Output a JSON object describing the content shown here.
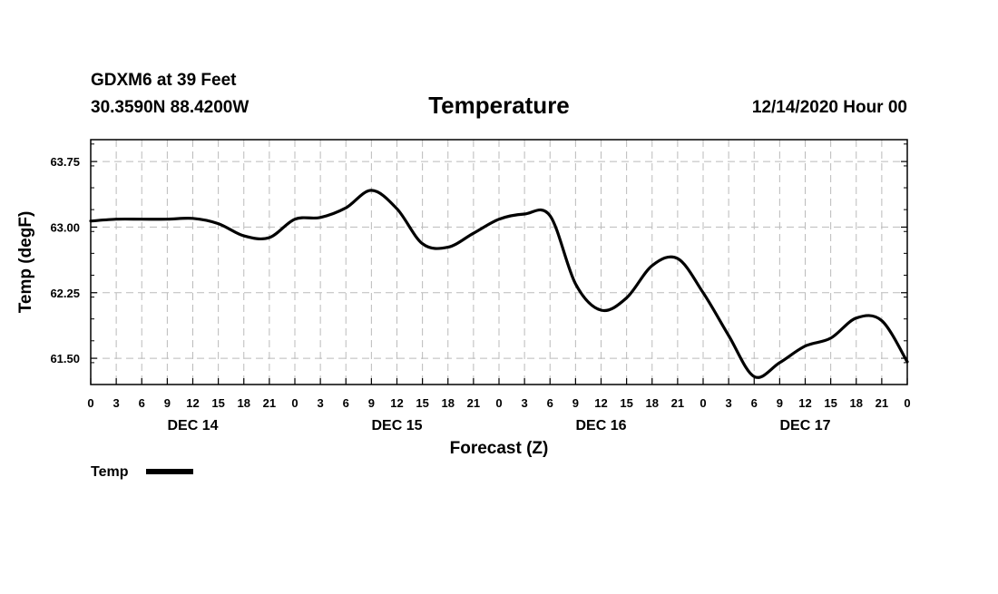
{
  "header": {
    "station": "GDXM6 at 39 Feet",
    "coords": "30.3590N 88.4200W",
    "run": "12/14/2020 Hour 00"
  },
  "chart_data": {
    "type": "line",
    "title": "Temperature",
    "xlabel": "Forecast (Z)",
    "ylabel": "Temp (degF)",
    "xlim": [
      0,
      96
    ],
    "ylim": [
      61.2,
      64.0
    ],
    "y_ticks": [
      "63.75",
      "63.00",
      "62.25",
      "61.50"
    ],
    "y_tick_values": [
      63.75,
      63.0,
      62.25,
      61.5
    ],
    "x_tick_labels": [
      "0",
      "3",
      "6",
      "9",
      "12",
      "15",
      "18",
      "21",
      "0",
      "3",
      "6",
      "9",
      "12",
      "15",
      "18",
      "21",
      "0",
      "3",
      "6",
      "9",
      "12",
      "15",
      "18",
      "21",
      "0",
      "3",
      "6",
      "9",
      "12",
      "15",
      "18",
      "21",
      "0"
    ],
    "day_labels": [
      {
        "label": "DEC 14",
        "hour": 12
      },
      {
        "label": "DEC 15",
        "hour": 36
      },
      {
        "label": "DEC 16",
        "hour": 60
      },
      {
        "label": "DEC 17",
        "hour": 84
      }
    ],
    "series": [
      {
        "name": "Temp",
        "color": "#000000",
        "points": [
          [
            0,
            63.07
          ],
          [
            3,
            63.09
          ],
          [
            6,
            63.09
          ],
          [
            9,
            63.09
          ],
          [
            12,
            63.1
          ],
          [
            15,
            63.04
          ],
          [
            18,
            62.9
          ],
          [
            21,
            62.88
          ],
          [
            24,
            63.09
          ],
          [
            27,
            63.11
          ],
          [
            30,
            63.22
          ],
          [
            33,
            63.42
          ],
          [
            36,
            63.21
          ],
          [
            39,
            62.81
          ],
          [
            42,
            62.77
          ],
          [
            45,
            62.93
          ],
          [
            48,
            63.09
          ],
          [
            51,
            63.15
          ],
          [
            54,
            63.13
          ],
          [
            57,
            62.35
          ],
          [
            60,
            62.05
          ],
          [
            63,
            62.19
          ],
          [
            66,
            62.56
          ],
          [
            69,
            62.64
          ],
          [
            72,
            62.25
          ],
          [
            75,
            61.76
          ],
          [
            78,
            61.29
          ],
          [
            81,
            61.45
          ],
          [
            84,
            61.64
          ],
          [
            87,
            61.73
          ],
          [
            90,
            61.96
          ],
          [
            93,
            61.93
          ],
          [
            96,
            61.46
          ]
        ]
      }
    ],
    "legend": {
      "label": "Temp",
      "position": "bottom-left"
    }
  }
}
